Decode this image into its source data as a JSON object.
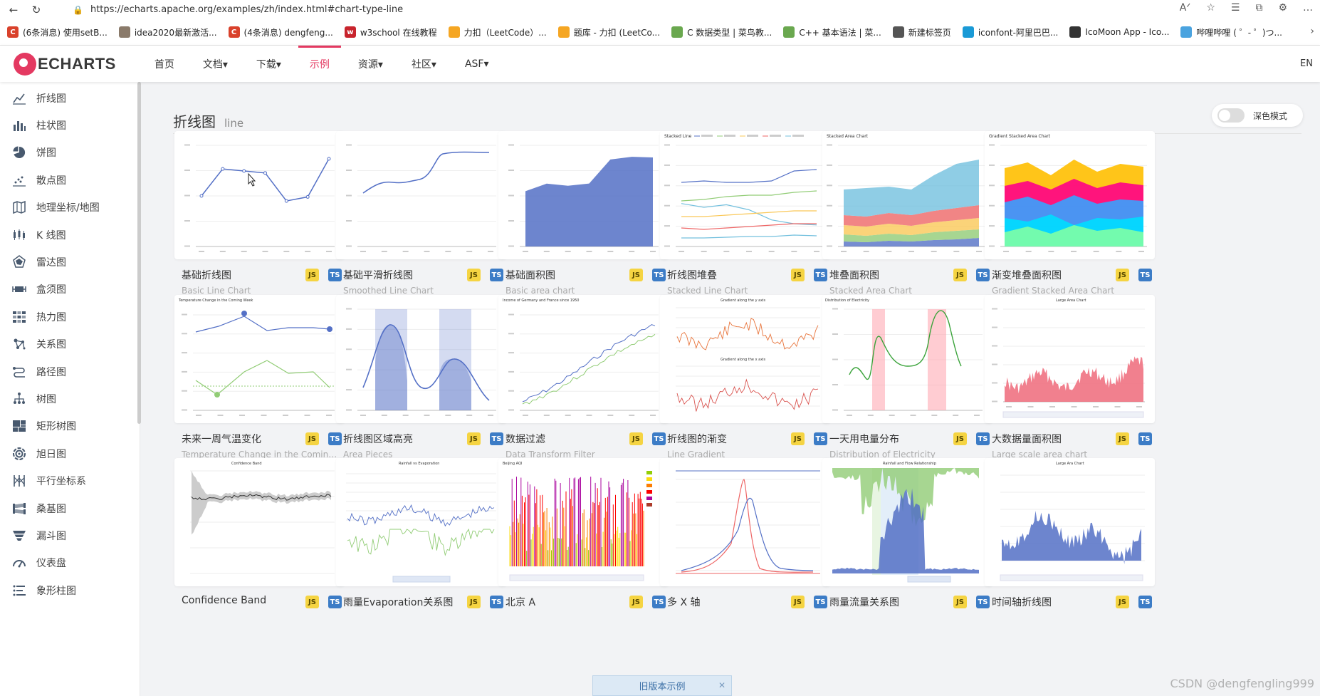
{
  "browser": {
    "url": "https://echarts.apache.org/examples/zh/index.html#chart-type-line",
    "bookmarks": [
      {
        "label": "(6条消息) 使用setB...",
        "color": "#d9412b",
        "glyph": "C"
      },
      {
        "label": "idea2020最新激活...",
        "color": "#8a7a6a",
        "glyph": ""
      },
      {
        "label": "(4条消息) dengfeng...",
        "color": "#d9412b",
        "glyph": "C"
      },
      {
        "label": "w3school 在线教程",
        "color": "#c8242d",
        "glyph": "w"
      },
      {
        "label": "力扣（LeetCode）...",
        "color": "#f5a623",
        "glyph": ""
      },
      {
        "label": "题库 - 力扣 (LeetCo...",
        "color": "#f5a623",
        "glyph": ""
      },
      {
        "label": "C 数据类型 | 菜鸟教...",
        "color": "#6aa84f",
        "glyph": ""
      },
      {
        "label": "C++ 基本语法 | 菜...",
        "color": "#6aa84f",
        "glyph": ""
      },
      {
        "label": "新建标签页",
        "color": "#555555",
        "glyph": ""
      },
      {
        "label": "iconfont-阿里巴巴...",
        "color": "#1a9ad6",
        "glyph": ""
      },
      {
        "label": "IcoMoon App - Ico...",
        "color": "#333333",
        "glyph": ""
      },
      {
        "label": "哔哩哔哩 ( ゜- ゜)つ...",
        "color": "#4aa3df",
        "glyph": ""
      }
    ]
  },
  "header": {
    "logo_text": "ECHARTS",
    "nav": [
      {
        "label": "首页",
        "active": false
      },
      {
        "label": "文档▾",
        "active": false
      },
      {
        "label": "下载▾",
        "active": false
      },
      {
        "label": "示例",
        "active": true
      },
      {
        "label": "资源▾",
        "active": false
      },
      {
        "label": "社区▾",
        "active": false
      },
      {
        "label": "ASF▾",
        "active": false
      }
    ],
    "lang": "EN"
  },
  "sidebar": [
    {
      "label": "折线图",
      "icon": "line-chart-icon"
    },
    {
      "label": "柱状图",
      "icon": "bar-chart-icon"
    },
    {
      "label": "饼图",
      "icon": "pie-chart-icon"
    },
    {
      "label": "散点图",
      "icon": "scatter-chart-icon"
    },
    {
      "label": "地理坐标/地图",
      "icon": "map-icon"
    },
    {
      "label": "K 线图",
      "icon": "candlestick-icon"
    },
    {
      "label": "雷达图",
      "icon": "radar-icon"
    },
    {
      "label": "盒须图",
      "icon": "boxplot-icon"
    },
    {
      "label": "热力图",
      "icon": "heatmap-icon"
    },
    {
      "label": "关系图",
      "icon": "graph-icon"
    },
    {
      "label": "路径图",
      "icon": "lines-icon"
    },
    {
      "label": "树图",
      "icon": "tree-icon"
    },
    {
      "label": "矩形树图",
      "icon": "treemap-icon"
    },
    {
      "label": "旭日图",
      "icon": "sunburst-icon"
    },
    {
      "label": "平行坐标系",
      "icon": "parallel-icon"
    },
    {
      "label": "桑基图",
      "icon": "sankey-icon"
    },
    {
      "label": "漏斗图",
      "icon": "funnel-icon"
    },
    {
      "label": "仪表盘",
      "icon": "gauge-icon"
    },
    {
      "label": "象形柱图",
      "icon": "pictorial-bar-icon"
    }
  ],
  "content": {
    "title": "折线图",
    "subtitle": "line",
    "dark_mode_label": "深色模式",
    "badge_js": "JS",
    "badge_ts": "TS",
    "cards": [
      {
        "title": "基础折线图",
        "subtitle": "Basic Line Chart",
        "kind": "basic-line"
      },
      {
        "title": "基础平滑折线图",
        "subtitle": "Smoothed Line Chart",
        "kind": "smooth-line"
      },
      {
        "title": "基础面积图",
        "subtitle": "Basic area chart",
        "kind": "basic-area"
      },
      {
        "title": "折线图堆叠",
        "subtitle": "Stacked Line Chart",
        "kind": "stacked-line"
      },
      {
        "title": "堆叠面积图",
        "subtitle": "Stacked Area Chart",
        "kind": "stacked-area"
      },
      {
        "title": "渐变堆叠面积图",
        "subtitle": "Gradient Stacked Area Chart",
        "kind": "gradient-stacked"
      },
      {
        "title": "未来一周气温变化",
        "subtitle": "Temperature Change in the Coming Week",
        "kind": "temperature"
      },
      {
        "title": "折线图区域高亮",
        "subtitle": "Area Pieces",
        "kind": "area-pieces"
      },
      {
        "title": "数据过滤",
        "subtitle": "Data Transform Filter",
        "kind": "data-filter"
      },
      {
        "title": "折线图的渐变",
        "subtitle": "Line Gradient",
        "kind": "line-gradient"
      },
      {
        "title": "一天用电量分布",
        "subtitle": "Distribution of Electricity",
        "kind": "electricity"
      },
      {
        "title": "大数据量面积图",
        "subtitle": "Large scale area chart",
        "kind": "large-area"
      },
      {
        "title": "Confidence Band",
        "subtitle": "",
        "kind": "confidence"
      },
      {
        "title": "雨量Evaporation关系图",
        "subtitle": "",
        "kind": "rainfall-evap"
      },
      {
        "title": "北京 A",
        "subtitle": "",
        "kind": "beijing-aqi"
      },
      {
        "title": "多 X 轴",
        "subtitle": "",
        "kind": "multi-x"
      },
      {
        "title": "雨量流量关系图",
        "subtitle": "",
        "kind": "rainfall-flow"
      },
      {
        "title": "时间轴折线图",
        "subtitle": "",
        "kind": "time-area"
      }
    ]
  },
  "old_version_label": "旧版本示例",
  "watermark": "CSDN @dengfengling999"
}
